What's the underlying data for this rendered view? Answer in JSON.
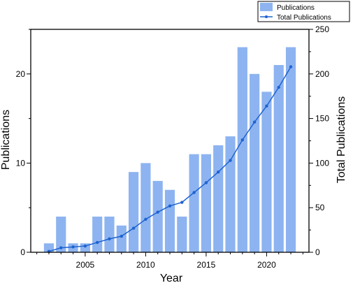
{
  "chart_data": {
    "type": "bar",
    "title": "",
    "xlabel": "Year",
    "ylabel": "Publications",
    "y2label": "Total Publications",
    "xlim": [
      2000.5,
      2023.5
    ],
    "ylim": [
      0,
      25
    ],
    "y2lim": [
      0,
      250
    ],
    "x_ticks": [
      2005,
      2010,
      2015,
      2020
    ],
    "y_ticks": [
      0,
      10,
      20
    ],
    "y2_ticks": [
      0,
      50,
      100,
      150,
      200,
      250
    ],
    "grid": false,
    "legend_position": "top-right",
    "colors": {
      "bar": "#8db4f0",
      "line": "#1f63d1"
    },
    "series": [
      {
        "name": "Publications",
        "type": "bar",
        "axis": "left",
        "x": [
          2002,
          2003,
          2004,
          2005,
          2006,
          2007,
          2008,
          2009,
          2010,
          2011,
          2012,
          2013,
          2014,
          2015,
          2016,
          2017,
          2018,
          2019,
          2020,
          2021,
          2022
        ],
        "values": [
          1,
          4,
          1,
          1,
          4,
          4,
          3,
          9,
          10,
          8,
          7,
          4,
          11,
          11,
          12,
          13,
          23,
          20,
          18,
          21,
          23
        ]
      },
      {
        "name": "Total Publications",
        "type": "line",
        "axis": "right",
        "x": [
          2002,
          2003,
          2004,
          2005,
          2006,
          2007,
          2008,
          2009,
          2010,
          2011,
          2012,
          2013,
          2014,
          2015,
          2016,
          2017,
          2018,
          2019,
          2020,
          2021,
          2022
        ],
        "values": [
          1,
          5,
          6,
          7,
          11,
          15,
          18,
          27,
          37,
          45,
          52,
          56,
          67,
          78,
          90,
          103,
          126,
          146,
          164,
          185,
          208
        ]
      }
    ]
  }
}
